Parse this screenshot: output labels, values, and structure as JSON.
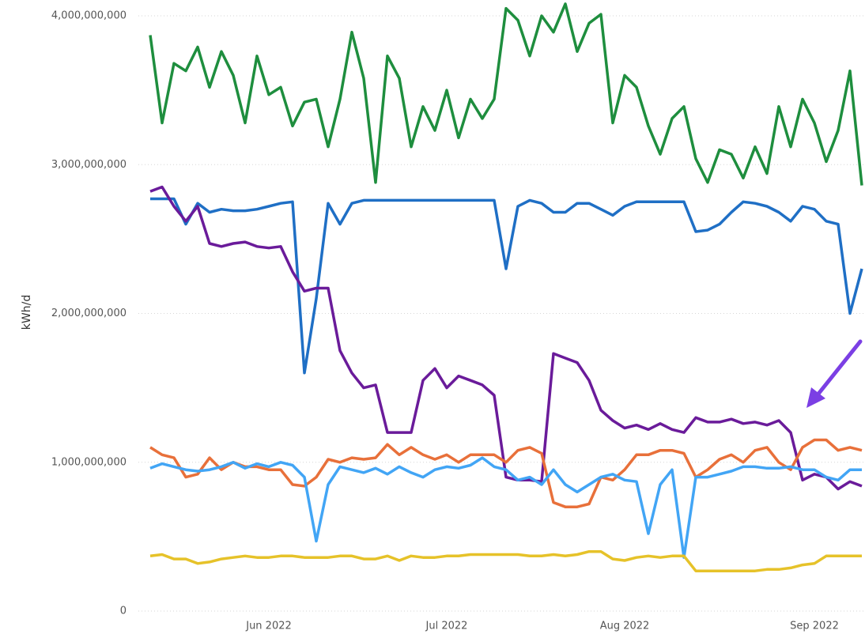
{
  "chart_data": {
    "type": "line",
    "y_label": "kWh/d",
    "categories": [
      null,
      null,
      null,
      null,
      null,
      null,
      null,
      null,
      null,
      null,
      "Jun 2022",
      null,
      null,
      null,
      null,
      null,
      null,
      null,
      null,
      null,
      null,
      null,
      null,
      null,
      null,
      "Jul 2022",
      null,
      null,
      null,
      null,
      null,
      null,
      null,
      null,
      null,
      null,
      null,
      null,
      null,
      null,
      "Aug 2022",
      null,
      null,
      null,
      null,
      null,
      null,
      null,
      null,
      null,
      null,
      null,
      null,
      null,
      null,
      null,
      "Sep 2022",
      null,
      null,
      null,
      null
    ],
    "ylim": [
      0,
      4000000000.0
    ],
    "yticks": [
      0,
      {
        "value": 1000000000,
        "label": "1,000,000,000"
      },
      {
        "value": 2000000000,
        "label": "2,000,000,000"
      },
      {
        "value": 3000000000,
        "label": "3,000,000,000"
      },
      {
        "value": 4000000000,
        "label": "4,000,000,000"
      }
    ],
    "grid": true,
    "series": [
      {
        "color": "#1e8e3e",
        "values": [
          3870000000.0,
          3280000000.0,
          3680000000.0,
          3630000000.0,
          3790000000.0,
          3520000000.0,
          3760000000.0,
          3600000000.0,
          3280000000.0,
          3730000000.0,
          3470000000.0,
          3520000000.0,
          3260000000.0,
          3420000000.0,
          3440000000.0,
          3120000000.0,
          3440000000.0,
          3890000000.0,
          3580000000.0,
          2880000000.0,
          3730000000.0,
          3580000000.0,
          3120000000.0,
          3390000000.0,
          3230000000.0,
          3500000000.0,
          3180000000.0,
          3440000000.0,
          3310000000.0,
          3440000000.0,
          4050000000.0,
          3970000000.0,
          3730000000.0,
          4000000000.0,
          3890000000.0,
          4080000000.0,
          3760000000.0,
          3950000000.0,
          4010000000.0,
          3280000000.0,
          3600000000.0,
          3520000000.0,
          3260000000.0,
          3070000000.0,
          3310000000.0,
          3390000000.0,
          3040000000.0,
          2880000000.0,
          3100000000.0,
          3070000000.0,
          2910000000.0,
          3120000000.0,
          2940000000.0,
          3390000000.0,
          3120000000.0,
          3440000000.0,
          3280000000.0,
          3020000000.0,
          3230000000.0,
          3630000000.0,
          2860000000.0
        ]
      },
      {
        "color": "#1f6fc5",
        "values": [
          2770000000.0,
          2770000000.0,
          2770000000.0,
          2600000000.0,
          2740000000.0,
          2680000000.0,
          2700000000.0,
          2690000000.0,
          2690000000.0,
          2700000000.0,
          2720000000.0,
          2740000000.0,
          2750000000.0,
          1600000000.0,
          2100000000.0,
          2740000000.0,
          2600000000.0,
          2740000000.0,
          2760000000.0,
          2760000000.0,
          2760000000.0,
          2760000000.0,
          2760000000.0,
          2760000000.0,
          2760000000.0,
          2760000000.0,
          2760000000.0,
          2760000000.0,
          2760000000.0,
          2760000000.0,
          2300000000.0,
          2720000000.0,
          2760000000.0,
          2740000000.0,
          2680000000.0,
          2680000000.0,
          2740000000.0,
          2740000000.0,
          2700000000.0,
          2660000000.0,
          2720000000.0,
          2750000000.0,
          2750000000.0,
          2750000000.0,
          2750000000.0,
          2750000000.0,
          2550000000.0,
          2560000000.0,
          2600000000.0,
          2680000000.0,
          2750000000.0,
          2740000000.0,
          2720000000.0,
          2680000000.0,
          2620000000.0,
          2720000000.0,
          2700000000.0,
          2620000000.0,
          2600000000.0,
          2000000000.0,
          2300000000.0
        ]
      },
      {
        "color": "#6a1b9a",
        "values": [
          2820000000.0,
          2850000000.0,
          2720000000.0,
          2620000000.0,
          2720000000.0,
          2470000000.0,
          2450000000.0,
          2470000000.0,
          2480000000.0,
          2450000000.0,
          2440000000.0,
          2450000000.0,
          2280000000.0,
          2150000000.0,
          2170000000.0,
          2170000000.0,
          1750000000.0,
          1600000000.0,
          1500000000.0,
          1520000000.0,
          1200000000.0,
          1200000000.0,
          1200000000.0,
          1550000000.0,
          1630000000.0,
          1500000000.0,
          1580000000.0,
          1550000000.0,
          1520000000.0,
          1450000000.0,
          900000000.0,
          880000000.0,
          880000000.0,
          870000000.0,
          1730000000.0,
          1700000000.0,
          1670000000.0,
          1550000000.0,
          1350000000.0,
          1280000000.0,
          1230000000.0,
          1250000000.0,
          1220000000.0,
          1260000000.0,
          1220000000.0,
          1200000000.0,
          1300000000.0,
          1270000000.0,
          1270000000.0,
          1290000000.0,
          1260000000.0,
          1270000000.0,
          1250000000.0,
          1280000000.0,
          1200000000.0,
          880000000.0,
          920000000.0,
          900000000.0,
          820000000.0,
          870000000.0,
          840000000.0
        ]
      },
      {
        "color": "#e8703a",
        "values": [
          1100000000.0,
          1050000000.0,
          1030000000.0,
          900000000.0,
          920000000.0,
          1030000000.0,
          950000000.0,
          1000000000.0,
          970000000.0,
          970000000.0,
          950000000.0,
          950000000.0,
          850000000.0,
          840000000.0,
          900000000.0,
          1020000000.0,
          1000000000.0,
          1030000000.0,
          1020000000.0,
          1030000000.0,
          1120000000.0,
          1050000000.0,
          1100000000.0,
          1050000000.0,
          1020000000.0,
          1050000000.0,
          1000000000.0,
          1050000000.0,
          1050000000.0,
          1050000000.0,
          1000000000.0,
          1080000000.0,
          1100000000.0,
          1060000000.0,
          730000000.0,
          700000000.0,
          700000000.0,
          720000000.0,
          900000000.0,
          880000000.0,
          950000000.0,
          1050000000.0,
          1050000000.0,
          1080000000.0,
          1080000000.0,
          1060000000.0,
          900000000.0,
          950000000.0,
          1020000000.0,
          1050000000.0,
          1000000000.0,
          1080000000.0,
          1100000000.0,
          1000000000.0,
          950000000.0,
          1100000000.0,
          1150000000.0,
          1150000000.0,
          1080000000.0,
          1100000000.0,
          1080000000.0
        ]
      },
      {
        "color": "#42a5f5",
        "values": [
          960000000.0,
          990000000.0,
          970000000.0,
          950000000.0,
          940000000.0,
          950000000.0,
          970000000.0,
          1000000000.0,
          960000000.0,
          990000000.0,
          970000000.0,
          1000000000.0,
          980000000.0,
          900000000.0,
          470000000.0,
          850000000.0,
          970000000.0,
          950000000.0,
          930000000.0,
          960000000.0,
          920000000.0,
          970000000.0,
          930000000.0,
          900000000.0,
          950000000.0,
          970000000.0,
          960000000.0,
          980000000.0,
          1030000000.0,
          970000000.0,
          950000000.0,
          880000000.0,
          900000000.0,
          850000000.0,
          950000000.0,
          850000000.0,
          800000000.0,
          850000000.0,
          900000000.0,
          920000000.0,
          880000000.0,
          870000000.0,
          520000000.0,
          850000000.0,
          950000000.0,
          360000000.0,
          900000000.0,
          900000000.0,
          920000000.0,
          940000000.0,
          970000000.0,
          970000000.0,
          960000000.0,
          960000000.0,
          970000000.0,
          950000000.0,
          950000000.0,
          900000000.0,
          880000000.0,
          950000000.0,
          950000000.0
        ]
      },
      {
        "color": "#e6c229",
        "values": [
          370000000.0,
          380000000.0,
          350000000.0,
          350000000.0,
          320000000.0,
          330000000.0,
          350000000.0,
          360000000.0,
          370000000.0,
          360000000.0,
          360000000.0,
          370000000.0,
          370000000.0,
          360000000.0,
          360000000.0,
          360000000.0,
          370000000.0,
          370000000.0,
          350000000.0,
          350000000.0,
          370000000.0,
          340000000.0,
          370000000.0,
          360000000.0,
          360000000.0,
          370000000.0,
          370000000.0,
          380000000.0,
          380000000.0,
          380000000.0,
          380000000.0,
          380000000.0,
          370000000.0,
          370000000.0,
          380000000.0,
          370000000.0,
          380000000.0,
          400000000.0,
          400000000.0,
          350000000.0,
          340000000.0,
          360000000.0,
          370000000.0,
          360000000.0,
          370000000.0,
          370000000.0,
          270000000.0,
          270000000.0,
          270000000.0,
          270000000.0,
          270000000.0,
          270000000.0,
          280000000.0,
          280000000.0,
          290000000.0,
          310000000.0,
          320000000.0,
          370000000.0,
          370000000.0,
          370000000.0,
          370000000.0
        ]
      }
    ]
  }
}
